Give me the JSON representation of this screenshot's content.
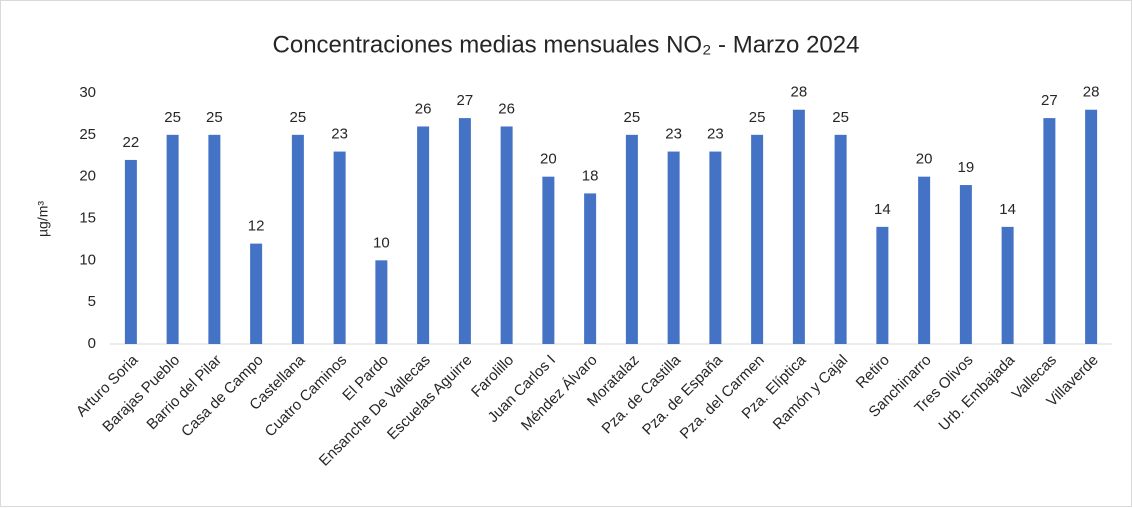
{
  "chart_data": {
    "type": "bar",
    "title": "Concentraciones medias mensuales NO₂ - Marzo 2024",
    "ylabel": "µg/m³",
    "categories": [
      "Arturo Soria",
      "Barajas Pueblo",
      "Barrio del Pilar",
      "Casa de Campo",
      "Castellana",
      "Cuatro Caminos",
      "El Pardo",
      "Ensanche De Vallecas",
      "Escuelas Aguirre",
      "Farolillo",
      "Juan Carlos I",
      "Méndez Álvaro",
      "Moratalaz",
      "Pza. de Castilla",
      "Pza. de España",
      "Pza. del Carmen",
      "Pza. Elíptica",
      "Ramón y Cajal",
      "Retiro",
      "Sanchinarro",
      "Tres Olivos",
      "Urb. Embajada",
      "Vallecas",
      "Villaverde"
    ],
    "values": [
      22,
      25,
      25,
      12,
      25,
      23,
      10,
      26,
      27,
      26,
      20,
      18,
      25,
      23,
      23,
      25,
      28,
      25,
      14,
      20,
      19,
      14,
      27,
      28
    ],
    "color": "#4472c4",
    "ylim": [
      0,
      30
    ],
    "yticks": [
      0,
      5,
      10,
      15,
      20,
      25,
      30
    ],
    "grid": false
  }
}
